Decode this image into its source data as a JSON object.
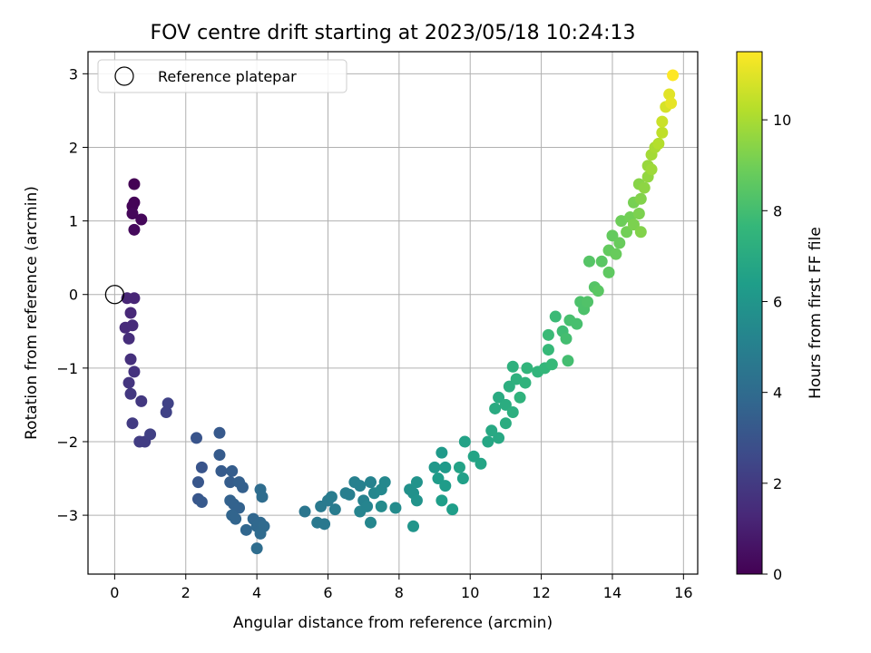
{
  "chart_data": {
    "type": "scatter",
    "title": "FOV centre drift starting at 2023/05/18 10:24:13",
    "xlabel": "Angular distance from reference (arcmin)",
    "ylabel": "Rotation from reference (arcmin)",
    "xlim": [
      -0.75,
      16.4
    ],
    "ylim": [
      -3.8,
      3.3
    ],
    "xticks": [
      0,
      2,
      4,
      6,
      8,
      10,
      12,
      14,
      16
    ],
    "yticks": [
      -3,
      -2,
      -1,
      0,
      1,
      2,
      3
    ],
    "grid": true,
    "legend": {
      "position": "top-left",
      "entries": [
        "Reference platepar"
      ]
    },
    "reference_point": {
      "x": 0,
      "y": 0,
      "label": "Reference platepar"
    },
    "colorbar": {
      "label": "Hours from first FF file",
      "range": [
        0,
        11.5
      ],
      "ticks": [
        0,
        2,
        4,
        6,
        8,
        10
      ],
      "colormap": "viridis"
    },
    "points": [
      [
        0.55,
        1.5,
        0.0
      ],
      [
        0.55,
        1.25,
        0.1
      ],
      [
        0.5,
        1.2,
        0.1
      ],
      [
        0.5,
        1.1,
        0.2
      ],
      [
        0.75,
        1.02,
        0.2
      ],
      [
        0.55,
        0.88,
        0.3
      ],
      [
        0.35,
        -0.05,
        1.2
      ],
      [
        0.55,
        -0.05,
        1.2
      ],
      [
        0.45,
        -0.25,
        1.3
      ],
      [
        0.3,
        -0.45,
        1.4
      ],
      [
        0.5,
        -0.42,
        1.4
      ],
      [
        0.4,
        -0.6,
        1.5
      ],
      [
        0.45,
        -0.88,
        1.6
      ],
      [
        0.55,
        -1.05,
        1.7
      ],
      [
        0.4,
        -1.2,
        1.8
      ],
      [
        0.45,
        -1.35,
        1.9
      ],
      [
        0.75,
        -1.45,
        1.9
      ],
      [
        0.5,
        -1.75,
        2.0
      ],
      [
        0.7,
        -2.0,
        2.1
      ],
      [
        0.85,
        -2.0,
        2.1
      ],
      [
        1.0,
        -1.9,
        2.2
      ],
      [
        1.45,
        -1.6,
        2.3
      ],
      [
        1.5,
        -1.48,
        2.3
      ],
      [
        2.3,
        -1.95,
        3.0
      ],
      [
        2.45,
        -2.35,
        3.0
      ],
      [
        2.35,
        -2.55,
        3.1
      ],
      [
        2.35,
        -2.78,
        3.1
      ],
      [
        2.45,
        -2.82,
        3.2
      ],
      [
        2.95,
        -1.88,
        3.2
      ],
      [
        2.95,
        -2.18,
        3.3
      ],
      [
        3.0,
        -2.4,
        3.3
      ],
      [
        3.3,
        -2.4,
        3.4
      ],
      [
        3.25,
        -2.55,
        3.4
      ],
      [
        3.5,
        -2.55,
        3.5
      ],
      [
        3.6,
        -2.62,
        3.5
      ],
      [
        3.25,
        -2.8,
        3.6
      ],
      [
        3.35,
        -2.85,
        3.6
      ],
      [
        3.5,
        -2.9,
        3.6
      ],
      [
        3.3,
        -3.0,
        3.7
      ],
      [
        3.4,
        -3.05,
        3.7
      ],
      [
        3.7,
        -3.2,
        3.8
      ],
      [
        3.9,
        -3.05,
        3.8
      ],
      [
        4.0,
        -3.15,
        3.9
      ],
      [
        4.1,
        -3.1,
        3.9
      ],
      [
        4.2,
        -3.15,
        4.0
      ],
      [
        4.1,
        -3.25,
        4.0
      ],
      [
        4.0,
        -3.45,
        4.1
      ],
      [
        4.1,
        -2.65,
        4.1
      ],
      [
        4.15,
        -2.75,
        4.1
      ],
      [
        5.35,
        -2.95,
        4.5
      ],
      [
        5.7,
        -3.1,
        4.6
      ],
      [
        5.9,
        -3.12,
        4.6
      ],
      [
        5.8,
        -2.88,
        4.7
      ],
      [
        6.0,
        -2.8,
        4.7
      ],
      [
        6.1,
        -2.75,
        4.8
      ],
      [
        6.2,
        -2.92,
        4.8
      ],
      [
        6.5,
        -2.7,
        4.9
      ],
      [
        6.6,
        -2.72,
        4.9
      ],
      [
        6.75,
        -2.55,
        5.0
      ],
      [
        6.9,
        -2.6,
        5.0
      ],
      [
        7.2,
        -2.55,
        5.1
      ],
      [
        7.0,
        -2.8,
        5.1
      ],
      [
        7.1,
        -2.88,
        5.2
      ],
      [
        6.9,
        -2.95,
        5.2
      ],
      [
        7.2,
        -3.1,
        5.3
      ],
      [
        7.3,
        -2.7,
        5.3
      ],
      [
        7.5,
        -2.65,
        5.4
      ],
      [
        7.6,
        -2.55,
        5.4
      ],
      [
        7.5,
        -2.88,
        5.5
      ],
      [
        7.9,
        -2.9,
        5.5
      ],
      [
        8.3,
        -2.65,
        5.8
      ],
      [
        8.4,
        -2.7,
        5.8
      ],
      [
        8.5,
        -2.55,
        5.9
      ],
      [
        8.5,
        -2.8,
        5.9
      ],
      [
        8.4,
        -3.15,
        6.0
      ],
      [
        9.0,
        -2.35,
        6.1
      ],
      [
        9.2,
        -2.15,
        6.2
      ],
      [
        9.3,
        -2.35,
        6.2
      ],
      [
        9.1,
        -2.5,
        6.3
      ],
      [
        9.3,
        -2.6,
        6.3
      ],
      [
        9.2,
        -2.8,
        6.4
      ],
      [
        9.5,
        -2.92,
        6.4
      ],
      [
        9.8,
        -2.5,
        6.5
      ],
      [
        9.7,
        -2.35,
        6.6
      ],
      [
        9.85,
        -2.0,
        6.6
      ],
      [
        10.1,
        -2.2,
        6.7
      ],
      [
        10.3,
        -2.3,
        6.7
      ],
      [
        10.5,
        -2.0,
        6.8
      ],
      [
        10.6,
        -1.85,
        6.9
      ],
      [
        10.8,
        -1.95,
        6.9
      ],
      [
        10.7,
        -1.55,
        7.0
      ],
      [
        10.8,
        -1.4,
        7.0
      ],
      [
        11.0,
        -1.75,
        7.1
      ],
      [
        11.0,
        -1.5,
        7.1
      ],
      [
        11.1,
        -1.25,
        7.2
      ],
      [
        11.2,
        -1.6,
        7.2
      ],
      [
        11.3,
        -1.15,
        7.3
      ],
      [
        11.2,
        -0.98,
        7.3
      ],
      [
        11.4,
        -1.4,
        7.4
      ],
      [
        11.55,
        -1.2,
        7.4
      ],
      [
        11.6,
        -1.0,
        7.5
      ],
      [
        11.9,
        -1.05,
        7.5
      ],
      [
        12.1,
        -1.0,
        7.6
      ],
      [
        12.2,
        -0.75,
        7.7
      ],
      [
        12.3,
        -0.95,
        7.7
      ],
      [
        12.2,
        -0.55,
        7.8
      ],
      [
        12.4,
        -0.3,
        7.8
      ],
      [
        12.6,
        -0.5,
        7.9
      ],
      [
        12.7,
        -0.6,
        8.0
      ],
      [
        12.75,
        -0.9,
        8.0
      ],
      [
        12.8,
        -0.35,
        8.1
      ],
      [
        13.0,
        -0.4,
        8.1
      ],
      [
        13.1,
        -0.1,
        8.2
      ],
      [
        13.2,
        -0.2,
        8.2
      ],
      [
        13.3,
        -0.1,
        8.3
      ],
      [
        13.35,
        0.45,
        8.4
      ],
      [
        13.5,
        0.1,
        8.4
      ],
      [
        13.6,
        0.05,
        8.5
      ],
      [
        13.7,
        0.45,
        8.5
      ],
      [
        13.9,
        0.3,
        8.6
      ],
      [
        13.9,
        0.6,
        8.7
      ],
      [
        14.0,
        0.8,
        8.7
      ],
      [
        14.1,
        0.55,
        8.8
      ],
      [
        14.2,
        0.7,
        8.8
      ],
      [
        14.25,
        1.0,
        8.9
      ],
      [
        14.4,
        0.85,
        9.0
      ],
      [
        14.5,
        1.05,
        9.0
      ],
      [
        14.6,
        1.25,
        9.1
      ],
      [
        14.6,
        0.95,
        9.2
      ],
      [
        14.75,
        1.1,
        9.2
      ],
      [
        14.8,
        1.3,
        9.3
      ],
      [
        14.8,
        0.85,
        9.3
      ],
      [
        14.75,
        1.5,
        9.4
      ],
      [
        14.9,
        1.45,
        9.5
      ],
      [
        15.0,
        1.6,
        9.6
      ],
      [
        15.0,
        1.75,
        9.7
      ],
      [
        15.1,
        1.7,
        9.8
      ],
      [
        15.1,
        1.9,
        9.9
      ],
      [
        15.2,
        2.0,
        10.0
      ],
      [
        15.3,
        2.05,
        10.2
      ],
      [
        15.4,
        2.2,
        10.4
      ],
      [
        15.4,
        2.35,
        10.6
      ],
      [
        15.5,
        2.55,
        10.8
      ],
      [
        15.6,
        2.72,
        11.0
      ],
      [
        15.65,
        2.6,
        11.1
      ],
      [
        15.7,
        2.98,
        11.5
      ]
    ]
  }
}
